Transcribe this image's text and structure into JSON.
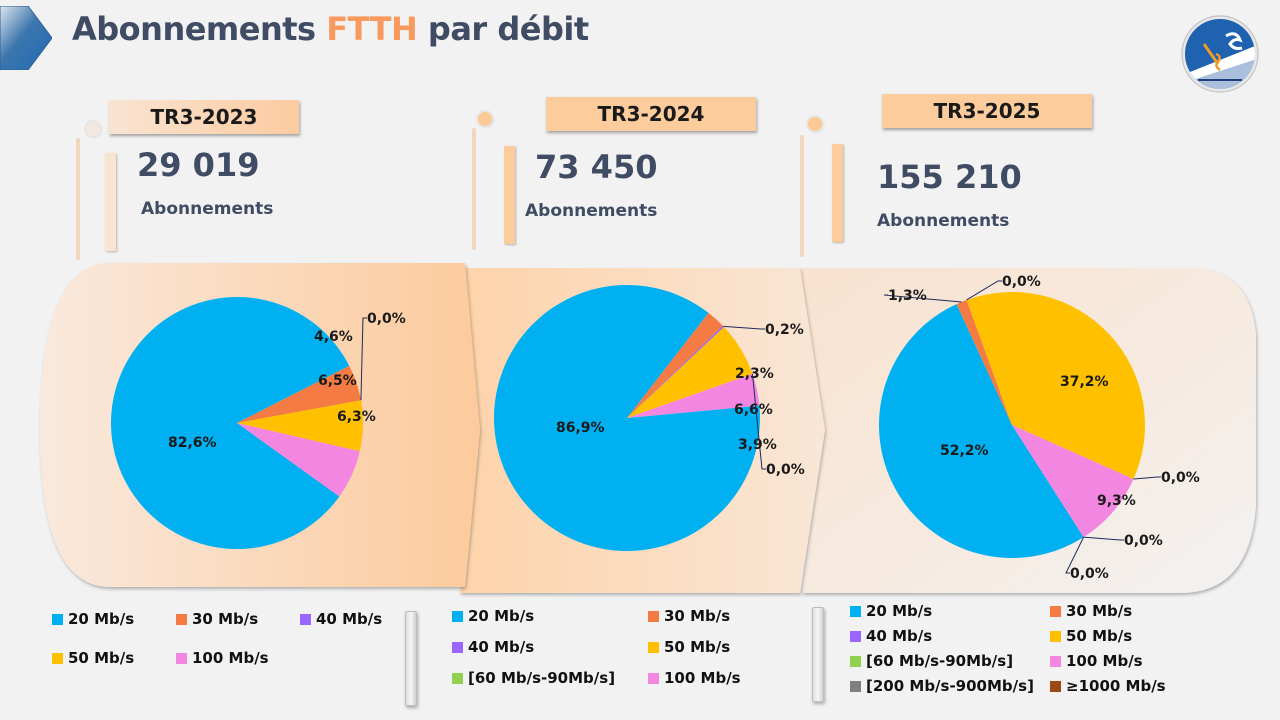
{
  "header": {
    "title_part1": "Abonnements ",
    "title_accent": "FTTH",
    "title_part2": " par débit",
    "logo_icon": "authority-logo-icon"
  },
  "colors": {
    "title": "#3f4c63",
    "accent": "#f89a5e",
    "20 Mb/s": "#00b0f0",
    "30 Mb/s": "#f47c44",
    "40 Mb/s": "#9966ff",
    "50 Mb/s": "#ffc000",
    "[60 Mb/s-90Mb/s]": "#92d050",
    "100 Mb/s": "#f286e0",
    "[200 Mb/s-900Mb/s]": "#7f7f7f",
    "≥1000 Mb/s": "#9c4a14"
  },
  "periods": [
    {
      "label": "TR3-2023",
      "count": "29 019",
      "count_label": "Abonnements"
    },
    {
      "label": "TR3-2024",
      "count": "73 450",
      "count_label": "Abonnements"
    },
    {
      "label": "TR3-2025",
      "count": "155 210",
      "count_label": "Abonnements"
    }
  ],
  "chart_data": [
    {
      "type": "pie",
      "title": "TR3-2023",
      "slices": [
        {
          "category": "20 Mb/s",
          "value": 82.6,
          "label": "82,6%"
        },
        {
          "category": "30 Mb/s",
          "value": 4.6,
          "label": "4,6%"
        },
        {
          "category": "40 Mb/s",
          "value": 0.0,
          "label": "0,0%"
        },
        {
          "category": "50 Mb/s",
          "value": 6.5,
          "label": "6,5%"
        },
        {
          "category": "100 Mb/s",
          "value": 6.3,
          "label": "6,3%"
        }
      ],
      "legend": [
        "20 Mb/s",
        "30 Mb/s",
        "40 Mb/s",
        "50 Mb/s",
        "100 Mb/s"
      ],
      "legend_position": "bottom"
    },
    {
      "type": "pie",
      "title": "TR3-2024",
      "slices": [
        {
          "category": "20 Mb/s",
          "value": 86.9,
          "label": "86,9%"
        },
        {
          "category": "30 Mb/s",
          "value": 2.3,
          "label": "2,3%"
        },
        {
          "category": "40 Mb/s",
          "value": 0.2,
          "label": "0,2%"
        },
        {
          "category": "50 Mb/s",
          "value": 6.6,
          "label": "6,6%"
        },
        {
          "category": "[60 Mb/s-90Mb/s]",
          "value": 0.0,
          "label": "0,0%"
        },
        {
          "category": "100 Mb/s",
          "value": 3.9,
          "label": "3,9%"
        }
      ],
      "legend": [
        "20 Mb/s",
        "30 Mb/s",
        "40 Mb/s",
        "50 Mb/s",
        "[60 Mb/s-90Mb/s]",
        "100 Mb/s"
      ],
      "legend_position": "bottom"
    },
    {
      "type": "pie",
      "title": "TR3-2025",
      "slices": [
        {
          "category": "20 Mb/s",
          "value": 52.2,
          "label": "52,2%"
        },
        {
          "category": "30 Mb/s",
          "value": 1.3,
          "label": "1,3%"
        },
        {
          "category": "40 Mb/s",
          "value": 0.0,
          "label": "0,0%"
        },
        {
          "category": "50 Mb/s",
          "value": 37.2,
          "label": "37,2%"
        },
        {
          "category": "[60 Mb/s-90Mb/s]",
          "value": 0.0,
          "label": "0,0%"
        },
        {
          "category": "100 Mb/s",
          "value": 9.3,
          "label": "9,3%"
        },
        {
          "category": "[200 Mb/s-900Mb/s]",
          "value": 0.0,
          "label": "0,0%"
        },
        {
          "category": "≥1000 Mb/s",
          "value": 0.0,
          "label": "0,0%"
        }
      ],
      "legend": [
        "20 Mb/s",
        "30 Mb/s",
        "40 Mb/s",
        "50 Mb/s",
        "[60 Mb/s-90Mb/s]",
        "100 Mb/s",
        "[200 Mb/s-900Mb/s]",
        "≥1000 Mb/s"
      ],
      "legend_position": "bottom"
    }
  ]
}
